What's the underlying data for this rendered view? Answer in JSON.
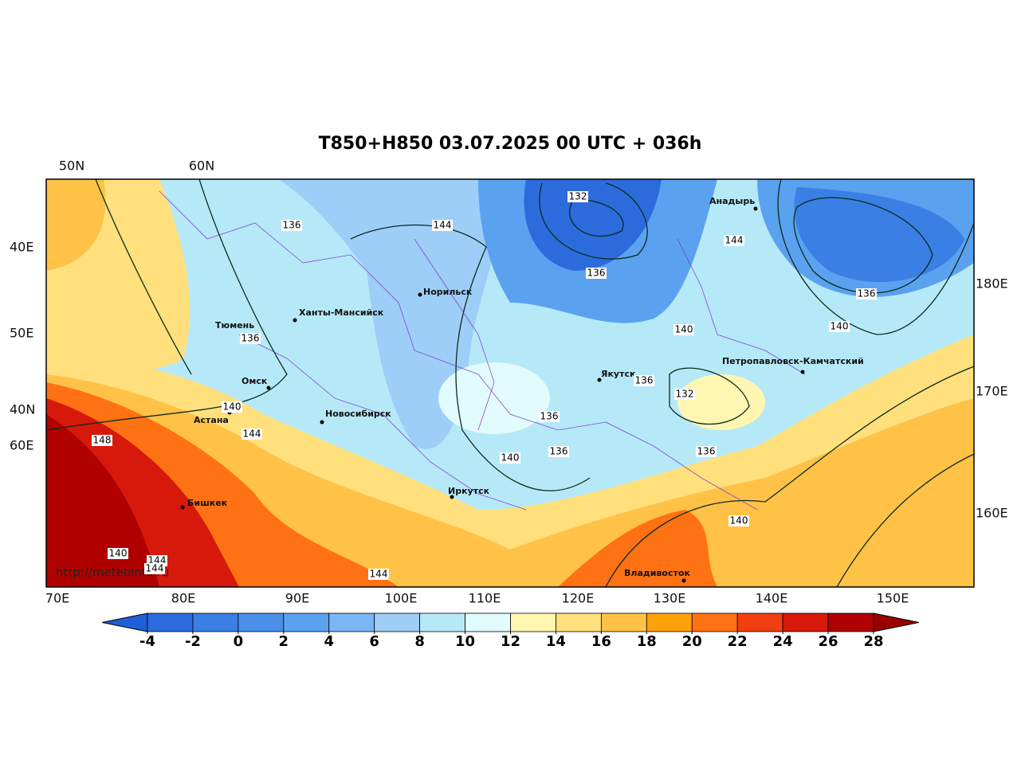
{
  "title": "T850+H850 03.07.2025 00 UTC + 036h",
  "watermark": "http://meteoinfo.ru",
  "bottom_labels": [
    "70E",
    "80E",
    "90E",
    "100E",
    "110E",
    "120E",
    "130E",
    "140E",
    "150E"
  ],
  "top_labels": [
    "50N",
    "60N"
  ],
  "left_labels": [
    "40E",
    "50E",
    "40N",
    "60E"
  ],
  "right_labels": [
    "180E",
    "170E",
    "160E"
  ],
  "cities": [
    "Анадырь",
    "Норильск",
    "Ханты-Мансийск",
    "Тюмень",
    "Омск",
    "Астана",
    "Новосибирск",
    "Якутск",
    "Петропавловск-Камчатский",
    "Иркутск",
    "Бишкек",
    "Владивосток"
  ],
  "contour_labels": [
    132,
    136,
    144,
    144,
    136,
    136,
    140,
    140,
    136,
    136,
    132,
    140,
    144,
    148,
    136,
    140,
    136,
    136,
    140,
    140,
    144,
    144,
    144
  ],
  "colorbar": {
    "ticks": [
      -4,
      -2,
      0,
      2,
      4,
      6,
      8,
      10,
      12,
      14,
      16,
      18,
      20,
      22,
      24,
      26,
      28
    ],
    "colors": [
      "#1f5fd8",
      "#2b6bdc",
      "#3a7fe4",
      "#4a90ea",
      "#5aa2f0",
      "#7ab6f4",
      "#9dcef7",
      "#b6e9f8",
      "#e2fbfc",
      "#fff6b2",
      "#ffe07c",
      "#ffc247",
      "#ffa10a",
      "#ff7214",
      "#f03e12",
      "#d6190b",
      "#b00000",
      "#9a0000"
    ]
  }
}
